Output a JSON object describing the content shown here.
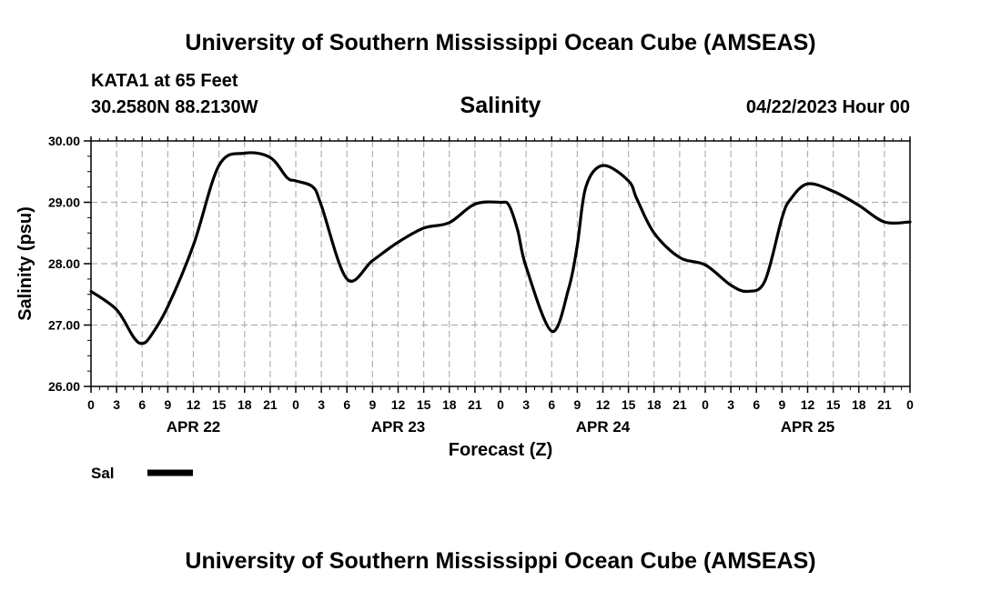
{
  "header": {
    "title": "University of Southern Mississippi Ocean Cube (AMSEAS)",
    "station": "KATA1 at 65 Feet",
    "coords": "30.2580N  88.2130W",
    "datetime": "04/22/2023 Hour 00"
  },
  "footer": {
    "title": "University of Southern Mississippi Ocean Cube (AMSEAS)"
  },
  "legend": {
    "label": "Sal"
  },
  "colors": {
    "line": "#000000",
    "grid": "#b0b0b0"
  },
  "chart_data": {
    "type": "line",
    "title": "Salinity",
    "xlabel": "Forecast (Z)",
    "ylabel": "Salinity (psu)",
    "ylim": [
      26,
      30
    ],
    "yticks": [
      "26.00",
      "27.00",
      "28.00",
      "29.00",
      "30.00"
    ],
    "xlim_hours": [
      0,
      96
    ],
    "xtick_labels": [
      "0",
      "3",
      "6",
      "9",
      "12",
      "15",
      "18",
      "21",
      "0",
      "3",
      "6",
      "9",
      "12",
      "15",
      "18",
      "21",
      "0",
      "3",
      "6",
      "9",
      "12",
      "15",
      "18",
      "21",
      "0",
      "3",
      "6",
      "9",
      "12",
      "15",
      "18",
      "21",
      "0"
    ],
    "day_labels": [
      {
        "hour": 12,
        "label": "APR 22"
      },
      {
        "hour": 36,
        "label": "APR 23"
      },
      {
        "hour": 60,
        "label": "APR 24"
      },
      {
        "hour": 84,
        "label": "APR 25"
      }
    ],
    "grid": true,
    "series": [
      {
        "name": "Sal",
        "x": [
          0,
          3,
          5,
          6,
          7,
          9,
          12,
          15,
          18,
          21,
          23,
          24,
          26,
          27,
          30,
          33,
          36,
          39,
          42,
          45,
          48,
          49,
          50,
          51,
          54,
          56,
          57,
          58,
          60,
          63,
          64,
          66,
          69,
          72,
          75,
          77,
          79,
          81,
          82,
          84,
          87,
          90,
          93,
          96
        ],
        "values": [
          27.55,
          27.25,
          26.8,
          26.7,
          26.82,
          27.3,
          28.3,
          29.6,
          29.8,
          29.73,
          29.4,
          29.35,
          29.25,
          28.95,
          27.75,
          28.05,
          28.35,
          28.58,
          28.67,
          28.97,
          29.0,
          28.95,
          28.55,
          27.95,
          26.9,
          27.6,
          28.3,
          29.25,
          29.6,
          29.35,
          29.05,
          28.5,
          28.1,
          27.98,
          27.65,
          27.55,
          27.72,
          28.75,
          29.05,
          29.3,
          29.18,
          28.95,
          28.68,
          28.68
        ]
      }
    ]
  }
}
